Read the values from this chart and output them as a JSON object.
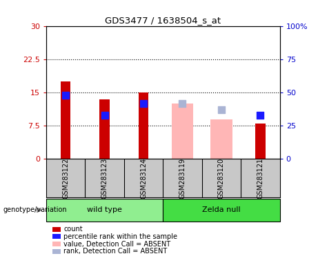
{
  "title": "GDS3477 / 1638504_s_at",
  "samples": [
    "GSM283122",
    "GSM283123",
    "GSM283124",
    "GSM283119",
    "GSM283120",
    "GSM283121"
  ],
  "red_bars": [
    17.5,
    13.5,
    15.0,
    null,
    null,
    8.0
  ],
  "pink_bars": [
    null,
    null,
    null,
    12.5,
    9.0,
    null
  ],
  "blue_squares_pct": [
    48,
    33,
    42,
    null,
    null,
    33
  ],
  "lightblue_squares_pct": [
    null,
    null,
    null,
    42,
    37,
    null
  ],
  "ylim_left": [
    0,
    30
  ],
  "ylim_right": [
    0,
    100
  ],
  "yticks_left": [
    0,
    7.5,
    15,
    22.5,
    30
  ],
  "yticks_right": [
    0,
    25,
    50,
    75,
    100
  ],
  "ytick_labels_left": [
    "0",
    "7.5",
    "15",
    "22.5",
    "30"
  ],
  "ytick_labels_right": [
    "0",
    "25",
    "50",
    "75",
    "100%"
  ],
  "hlines": [
    7.5,
    15.0,
    22.5
  ],
  "genotype_label": "genotype/variation",
  "legend_items": [
    {
      "label": "count",
      "color": "#cc0000"
    },
    {
      "label": "percentile rank within the sample",
      "color": "#1a1aff"
    },
    {
      "label": "value, Detection Call = ABSENT",
      "color": "#ffb6b6"
    },
    {
      "label": "rank, Detection Call = ABSENT",
      "color": "#aab4d4"
    }
  ],
  "bar_color_red": "#cc0000",
  "bar_color_pink": "#ffb6b6",
  "square_color_blue": "#1a1aff",
  "square_color_lightblue": "#aab4d4",
  "group_box_color_wt": "#90ee90",
  "group_box_color_zn": "#44dd44",
  "sample_area_bg": "#c8c8c8"
}
